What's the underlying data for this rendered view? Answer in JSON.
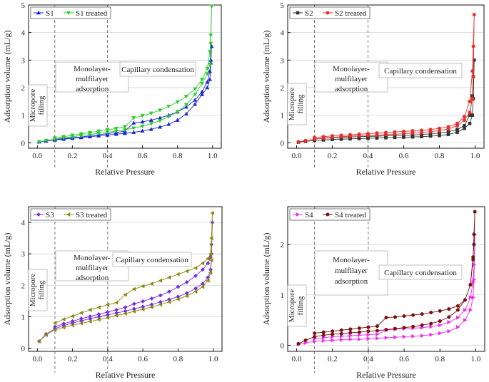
{
  "chart_data": [
    {
      "type": "line",
      "id": "s1",
      "xlabel": "Relative Pressure",
      "ylabel": "Adsorption volume (mL/g)",
      "xlim": [
        -0.05,
        1.05
      ],
      "ylim": [
        -0.2,
        5.0
      ],
      "xticks": [
        "0.0",
        "0.2",
        "0.4",
        "0.6",
        "0.8",
        "1.0"
      ],
      "yticks": [
        "0",
        "1",
        "2",
        "3",
        "4",
        "5"
      ],
      "vlines": [
        0.1,
        0.4
      ],
      "legend": {
        "position": "top-left",
        "entries": [
          "S1",
          "S1 treated"
        ]
      },
      "annotations": {
        "micropore": "Micropore filling",
        "monolayer": "Monolayer-mulfilayer adsorption",
        "capillary": "Capillary condensation"
      },
      "series": [
        {
          "name": "S1",
          "color": "#1c28d6",
          "marker": "triangle",
          "x": [
            0.01,
            0.05,
            0.1,
            0.15,
            0.2,
            0.25,
            0.3,
            0.35,
            0.4,
            0.45,
            0.5,
            0.55,
            0.6,
            0.65,
            0.7,
            0.75,
            0.8,
            0.85,
            0.9,
            0.94,
            0.97,
            0.985,
            0.99,
            0.995,
            0.99,
            0.985,
            0.97,
            0.94,
            0.9,
            0.85,
            0.8,
            0.75,
            0.7,
            0.65,
            0.6,
            0.55,
            0.5,
            0.45,
            0.4,
            0.35,
            0.3,
            0.25,
            0.2,
            0.15,
            0.1
          ],
          "y": [
            0.03,
            0.06,
            0.1,
            0.13,
            0.16,
            0.19,
            0.22,
            0.25,
            0.28,
            0.31,
            0.34,
            0.38,
            0.43,
            0.49,
            0.57,
            0.67,
            0.82,
            1.05,
            1.4,
            1.75,
            2.0,
            2.3,
            2.9,
            3.5,
            3.0,
            2.6,
            2.2,
            1.85,
            1.55,
            1.3,
            1.12,
            1.0,
            0.9,
            0.82,
            0.76,
            0.72,
            0.42,
            0.37,
            0.33,
            0.29,
            0.25,
            0.21,
            0.18,
            0.15,
            0.12
          ]
        },
        {
          "name": "S1 treated",
          "color": "#2ecc2e",
          "marker": "triangle-down",
          "x": [
            0.01,
            0.05,
            0.1,
            0.15,
            0.2,
            0.25,
            0.3,
            0.35,
            0.4,
            0.45,
            0.5,
            0.55,
            0.6,
            0.65,
            0.7,
            0.75,
            0.8,
            0.85,
            0.9,
            0.94,
            0.97,
            0.985,
            0.99,
            0.995,
            0.99,
            0.985,
            0.97,
            0.94,
            0.9,
            0.85,
            0.8,
            0.75,
            0.7,
            0.65,
            0.6,
            0.55,
            0.5,
            0.45,
            0.4,
            0.35,
            0.3,
            0.25,
            0.2,
            0.15,
            0.1
          ],
          "y": [
            0.03,
            0.08,
            0.13,
            0.18,
            0.22,
            0.26,
            0.3,
            0.34,
            0.38,
            0.42,
            0.47,
            0.53,
            0.6,
            0.69,
            0.8,
            0.95,
            1.12,
            1.38,
            1.75,
            2.15,
            2.5,
            2.85,
            3.6,
            4.95,
            3.9,
            3.3,
            2.7,
            2.3,
            1.95,
            1.68,
            1.48,
            1.32,
            1.18,
            1.07,
            0.98,
            0.9,
            0.58,
            0.52,
            0.47,
            0.42,
            0.37,
            0.32,
            0.27,
            0.22,
            0.17
          ]
        }
      ]
    },
    {
      "type": "line",
      "id": "s2",
      "xlabel": "Relative Pressure",
      "ylabel": "Adsorption volume (mL/g)",
      "xlim": [
        -0.05,
        1.05
      ],
      "ylim": [
        -0.2,
        5.0
      ],
      "xticks": [
        "0.0",
        "0.2",
        "0.4",
        "0.6",
        "0.8",
        "1.0"
      ],
      "yticks": [
        "0",
        "1",
        "2",
        "3",
        "4",
        "5"
      ],
      "vlines": [
        0.1,
        0.4
      ],
      "legend": {
        "position": "top-left",
        "entries": [
          "S2",
          "S2 treated"
        ]
      },
      "annotations": {
        "micropore": "Micropore filling",
        "monolayer": "Monolayer-mulfilayer adsorption",
        "capillary": "Capillary condensation"
      },
      "series": [
        {
          "name": "S2",
          "color": "#333333",
          "marker": "square",
          "x": [
            0.01,
            0.05,
            0.1,
            0.15,
            0.2,
            0.25,
            0.3,
            0.35,
            0.4,
            0.45,
            0.5,
            0.55,
            0.6,
            0.65,
            0.7,
            0.75,
            0.8,
            0.85,
            0.9,
            0.94,
            0.97,
            0.985,
            0.99,
            0.995,
            0.99,
            0.985,
            0.97,
            0.94,
            0.9,
            0.85,
            0.8,
            0.75,
            0.7,
            0.65,
            0.6,
            0.55,
            0.5,
            0.45,
            0.4,
            0.35,
            0.3,
            0.25,
            0.2,
            0.15,
            0.1
          ],
          "y": [
            0.02,
            0.05,
            0.08,
            0.1,
            0.12,
            0.13,
            0.14,
            0.15,
            0.16,
            0.17,
            0.18,
            0.19,
            0.2,
            0.21,
            0.22,
            0.24,
            0.26,
            0.3,
            0.38,
            0.52,
            0.7,
            1.0,
            1.6,
            3.0,
            2.4,
            1.7,
            1.0,
            0.62,
            0.48,
            0.4,
            0.35,
            0.32,
            0.3,
            0.28,
            0.27,
            0.26,
            0.25,
            0.24,
            0.23,
            0.22,
            0.21,
            0.2,
            0.18,
            0.16,
            0.14
          ]
        },
        {
          "name": "S2 treated",
          "color": "#e8302a",
          "marker": "circle",
          "x": [
            0.01,
            0.05,
            0.1,
            0.15,
            0.2,
            0.25,
            0.3,
            0.35,
            0.4,
            0.45,
            0.5,
            0.55,
            0.6,
            0.65,
            0.7,
            0.75,
            0.8,
            0.85,
            0.9,
            0.94,
            0.97,
            0.985,
            0.99,
            0.995,
            0.99,
            0.985,
            0.97,
            0.94,
            0.9,
            0.85,
            0.8,
            0.75,
            0.7,
            0.65,
            0.6,
            0.55,
            0.5,
            0.45,
            0.4,
            0.35,
            0.3,
            0.25,
            0.2,
            0.15,
            0.1
          ],
          "y": [
            0.03,
            0.08,
            0.13,
            0.17,
            0.2,
            0.22,
            0.24,
            0.26,
            0.27,
            0.28,
            0.3,
            0.31,
            0.33,
            0.35,
            0.37,
            0.4,
            0.44,
            0.5,
            0.62,
            0.82,
            1.1,
            1.6,
            2.4,
            4.65,
            3.5,
            2.6,
            1.5,
            0.95,
            0.7,
            0.58,
            0.52,
            0.48,
            0.45,
            0.43,
            0.41,
            0.39,
            0.37,
            0.35,
            0.33,
            0.31,
            0.29,
            0.27,
            0.25,
            0.22,
            0.19
          ]
        }
      ]
    },
    {
      "type": "line",
      "id": "s3",
      "xlabel": "Relative Pressure",
      "ylabel": "Adsorption volume (mL/g)",
      "xlim": [
        -0.05,
        1.05
      ],
      "ylim": [
        -0.1,
        4.5
      ],
      "xticks": [
        "0.0",
        "0.2",
        "0.4",
        "0.6",
        "0.8",
        "1.0"
      ],
      "yticks": [
        "0",
        "1",
        "2",
        "3",
        "4"
      ],
      "vlines": [
        0.1,
        0.4
      ],
      "legend": {
        "position": "top-left",
        "entries": [
          "S3",
          "S3 treated"
        ]
      },
      "annotations": {
        "micropore": "Micropore filling",
        "monolayer": "Monolayer-mulfilayer adsorption",
        "capillary": "Capillary condensation"
      },
      "series": [
        {
          "name": "S3",
          "color": "#7b2be0",
          "marker": "diamond",
          "x": [
            0.01,
            0.05,
            0.1,
            0.15,
            0.2,
            0.25,
            0.3,
            0.35,
            0.4,
            0.45,
            0.5,
            0.55,
            0.6,
            0.65,
            0.7,
            0.75,
            0.8,
            0.85,
            0.9,
            0.94,
            0.97,
            0.985,
            0.99,
            0.995,
            0.99,
            0.985,
            0.97,
            0.94,
            0.9,
            0.85,
            0.8,
            0.75,
            0.7,
            0.65,
            0.6,
            0.55,
            0.5,
            0.45,
            0.4,
            0.35,
            0.3,
            0.25,
            0.2,
            0.15,
            0.1
          ],
          "y": [
            0.22,
            0.45,
            0.62,
            0.72,
            0.8,
            0.87,
            0.94,
            1.0,
            1.06,
            1.12,
            1.18,
            1.25,
            1.32,
            1.39,
            1.47,
            1.55,
            1.64,
            1.75,
            1.9,
            2.05,
            2.25,
            2.5,
            3.0,
            4.0,
            3.3,
            2.9,
            2.7,
            2.5,
            2.3,
            2.1,
            1.95,
            1.8,
            1.68,
            1.58,
            1.49,
            1.41,
            1.3,
            1.22,
            1.15,
            1.08,
            1.01,
            0.94,
            0.86,
            0.78,
            0.68
          ]
        },
        {
          "name": "S3 treated",
          "color": "#8b8b10",
          "marker": "triangle-left",
          "x": [
            0.01,
            0.05,
            0.1,
            0.15,
            0.2,
            0.25,
            0.3,
            0.35,
            0.4,
            0.45,
            0.5,
            0.55,
            0.6,
            0.65,
            0.7,
            0.75,
            0.8,
            0.85,
            0.9,
            0.94,
            0.97,
            0.985,
            0.99,
            0.995,
            0.99,
            0.985,
            0.97,
            0.94,
            0.9,
            0.85,
            0.8,
            0.75,
            0.7,
            0.65,
            0.6,
            0.55,
            0.5,
            0.45,
            0.4,
            0.35,
            0.3,
            0.25,
            0.2,
            0.15,
            0.1
          ],
          "y": [
            0.22,
            0.42,
            0.58,
            0.66,
            0.73,
            0.79,
            0.85,
            0.91,
            0.97,
            1.04,
            1.1,
            1.17,
            1.24,
            1.31,
            1.39,
            1.47,
            1.56,
            1.66,
            1.8,
            1.95,
            2.15,
            2.4,
            2.8,
            4.3,
            3.5,
            3.0,
            2.85,
            2.7,
            2.55,
            2.45,
            2.35,
            2.25,
            2.15,
            2.05,
            1.97,
            1.88,
            1.7,
            1.45,
            1.38,
            1.3,
            1.22,
            1.12,
            1.02,
            0.92,
            0.8
          ]
        }
      ]
    },
    {
      "type": "line",
      "id": "s4",
      "xlabel": "Relative Pressure",
      "ylabel": "Adsorption volume (mL/g)",
      "xlim": [
        -0.05,
        1.05
      ],
      "ylim": [
        -0.12,
        2.75
      ],
      "xticks": [
        "0.0",
        "0.2",
        "0.4",
        "0.6",
        "0.8",
        "1.0"
      ],
      "yticks": [
        "0",
        "1",
        "2"
      ],
      "vlines": [
        0.1,
        0.4
      ],
      "legend": {
        "position": "top-left",
        "entries": [
          "S4",
          "S4 treated"
        ]
      },
      "annotations": {
        "micropore": "Micropore filling",
        "monolayer": "Monolayer-mulfilayer adsorption",
        "capillary": "Capillary condensation"
      },
      "series": [
        {
          "name": "S4",
          "color": "#ee2ce8",
          "marker": "triangle-right",
          "x": [
            0.01,
            0.05,
            0.1,
            0.15,
            0.2,
            0.25,
            0.3,
            0.35,
            0.4,
            0.45,
            0.5,
            0.55,
            0.6,
            0.65,
            0.7,
            0.75,
            0.8,
            0.85,
            0.9,
            0.94,
            0.97,
            0.985,
            0.99,
            0.995,
            0.99,
            0.985,
            0.97,
            0.94,
            0.9,
            0.85,
            0.8,
            0.75,
            0.7,
            0.65,
            0.6,
            0.55,
            0.5,
            0.45,
            0.4,
            0.35,
            0.3,
            0.25,
            0.2,
            0.15,
            0.1
          ],
          "y": [
            0.02,
            0.05,
            0.08,
            0.09,
            0.1,
            0.11,
            0.12,
            0.12,
            0.13,
            0.14,
            0.15,
            0.16,
            0.17,
            0.18,
            0.19,
            0.21,
            0.24,
            0.28,
            0.36,
            0.5,
            0.7,
            0.95,
            1.3,
            2.2,
            1.6,
            1.25,
            0.95,
            0.7,
            0.55,
            0.46,
            0.4,
            0.37,
            0.35,
            0.34,
            0.33,
            0.32,
            0.3,
            0.22,
            0.21,
            0.2,
            0.19,
            0.18,
            0.17,
            0.15,
            0.13
          ]
        },
        {
          "name": "S4 treated",
          "color": "#7a1010",
          "marker": "circle",
          "x": [
            0.01,
            0.05,
            0.1,
            0.15,
            0.2,
            0.25,
            0.3,
            0.35,
            0.4,
            0.45,
            0.5,
            0.55,
            0.6,
            0.65,
            0.7,
            0.75,
            0.8,
            0.85,
            0.9,
            0.94,
            0.97,
            0.985,
            0.99,
            0.995,
            0.99,
            0.985,
            0.97,
            0.94,
            0.9,
            0.85,
            0.8,
            0.75,
            0.7,
            0.65,
            0.6,
            0.55,
            0.5,
            0.45,
            0.4,
            0.35,
            0.3,
            0.25,
            0.2,
            0.15,
            0.1
          ],
          "y": [
            0.03,
            0.1,
            0.17,
            0.2,
            0.22,
            0.23,
            0.25,
            0.26,
            0.28,
            0.29,
            0.31,
            0.33,
            0.35,
            0.37,
            0.4,
            0.43,
            0.48,
            0.56,
            0.7,
            0.9,
            1.2,
            1.7,
            2.2,
            2.65,
            2.0,
            1.75,
            1.2,
            0.9,
            0.78,
            0.72,
            0.68,
            0.65,
            0.62,
            0.6,
            0.58,
            0.56,
            0.55,
            0.38,
            0.36,
            0.34,
            0.32,
            0.3,
            0.28,
            0.26,
            0.24
          ]
        }
      ]
    }
  ]
}
